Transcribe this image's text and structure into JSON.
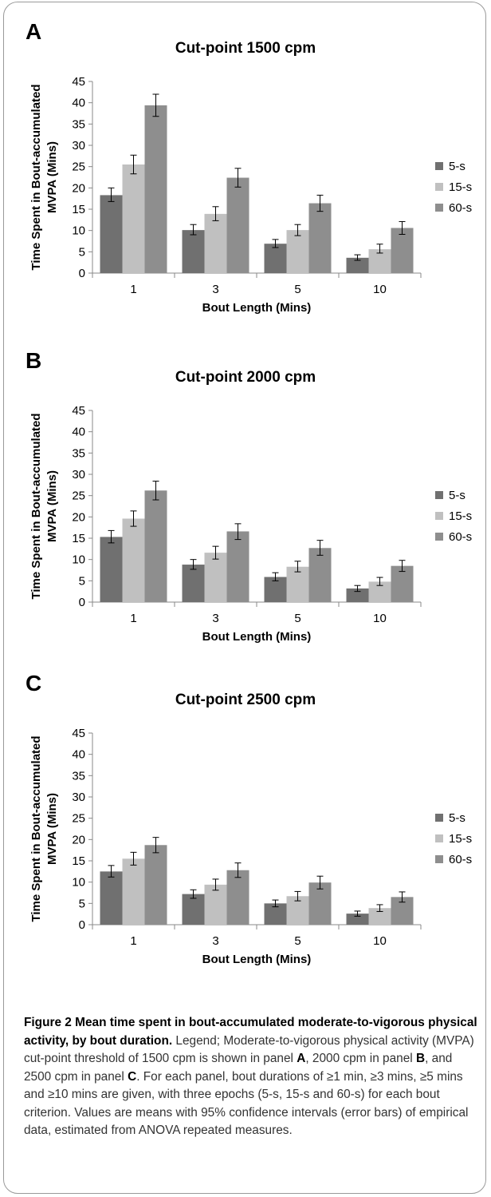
{
  "chart_data": [
    {
      "type": "bar",
      "panel_label": "A",
      "title": "Cut-point 1500 cpm",
      "xlabel": "Bout Length (Mins)",
      "ylabel_lines": [
        "Time Spent in Bout-accumulated",
        "MVPA (Mins)"
      ],
      "categories": [
        "1",
        "3",
        "5",
        "10"
      ],
      "ylim": [
        0,
        45
      ],
      "yticks": [
        0,
        5,
        10,
        15,
        20,
        25,
        30,
        35,
        40,
        45
      ],
      "legend_position": "right",
      "series": [
        {
          "name": "5-s",
          "color": "#707070",
          "values": [
            18.3,
            10.1,
            6.9,
            3.6
          ],
          "err_low": [
            16.8,
            9.0,
            6.0,
            3.0
          ],
          "err_high": [
            20.0,
            11.4,
            7.9,
            4.3
          ]
        },
        {
          "name": "15-s",
          "color": "#c0c0c0",
          "values": [
            25.5,
            13.9,
            10.1,
            5.6
          ],
          "err_low": [
            23.3,
            12.3,
            8.8,
            4.7
          ],
          "err_high": [
            27.7,
            15.6,
            11.4,
            6.8
          ]
        },
        {
          "name": "60-s",
          "color": "#8e8e8e",
          "values": [
            39.4,
            22.4,
            16.4,
            10.6
          ],
          "err_low": [
            36.8,
            20.2,
            14.5,
            9.1
          ],
          "err_high": [
            42.0,
            24.6,
            18.3,
            12.1
          ]
        }
      ]
    },
    {
      "type": "bar",
      "panel_label": "B",
      "title": "Cut-point 2000 cpm",
      "xlabel": "Bout Length (Mins)",
      "ylabel_lines": [
        "Time Spent in Bout-accumulated",
        "MVPA (Mins)"
      ],
      "categories": [
        "1",
        "3",
        "5",
        "10"
      ],
      "ylim": [
        0,
        45
      ],
      "yticks": [
        0,
        5,
        10,
        15,
        20,
        25,
        30,
        35,
        40,
        45
      ],
      "legend_position": "right",
      "series": [
        {
          "name": "5-s",
          "color": "#707070",
          "values": [
            15.3,
            8.8,
            5.9,
            3.2
          ],
          "err_low": [
            13.9,
            7.7,
            5.0,
            2.5
          ],
          "err_high": [
            16.8,
            10.0,
            6.9,
            3.9
          ]
        },
        {
          "name": "15-s",
          "color": "#c0c0c0",
          "values": [
            19.6,
            11.6,
            8.3,
            4.8
          ],
          "err_low": [
            17.8,
            10.1,
            7.1,
            3.9
          ],
          "err_high": [
            21.4,
            13.1,
            9.6,
            5.8
          ]
        },
        {
          "name": "60-s",
          "color": "#8e8e8e",
          "values": [
            26.2,
            16.6,
            12.7,
            8.5
          ],
          "err_low": [
            24.0,
            14.7,
            11.0,
            7.2
          ],
          "err_high": [
            28.4,
            18.4,
            14.5,
            9.8
          ]
        }
      ]
    },
    {
      "type": "bar",
      "panel_label": "C",
      "title": "Cut-point 2500 cpm",
      "xlabel": "Bout Length (Mins)",
      "ylabel_lines": [
        "Time Spent in Bout-accumulated",
        "MVPA (Mins)"
      ],
      "categories": [
        "1",
        "3",
        "5",
        "10"
      ],
      "ylim": [
        0,
        45
      ],
      "yticks": [
        0,
        5,
        10,
        15,
        20,
        25,
        30,
        35,
        40,
        45
      ],
      "legend_position": "right",
      "series": [
        {
          "name": "5-s",
          "color": "#707070",
          "values": [
            12.5,
            7.2,
            5.0,
            2.6
          ],
          "err_low": [
            11.2,
            6.2,
            4.2,
            2.0
          ],
          "err_high": [
            13.9,
            8.2,
            5.8,
            3.2
          ]
        },
        {
          "name": "15-s",
          "color": "#c0c0c0",
          "values": [
            15.5,
            9.4,
            6.7,
            3.9
          ],
          "err_low": [
            14.0,
            8.1,
            5.6,
            3.1
          ],
          "err_high": [
            17.0,
            10.7,
            7.8,
            4.7
          ]
        },
        {
          "name": "60-s",
          "color": "#8e8e8e",
          "values": [
            18.7,
            12.8,
            9.9,
            6.5
          ],
          "err_low": [
            16.9,
            11.1,
            8.4,
            5.3
          ],
          "err_high": [
            20.5,
            14.5,
            11.4,
            7.7
          ]
        }
      ]
    }
  ],
  "caption": {
    "title": "Figure 2 Mean time spent in bout-accumulated moderate-to-vigorous physical activity, by bout duration.",
    "legend_word": "Legend; Moderate-to-vigorous physical activity (MVPA) cut-point threshold of 1500 cpm is shown in panel",
    "panel_a": "A",
    "mid1": ", 2000 cpm in panel",
    "panel_b": "B",
    "mid2": ", and 2500 cpm in panel",
    "panel_c": "C",
    "rest": ". For each panel, bout durations of ≥1 min, ≥3 mins, ≥5 mins and ≥10 mins are given, with three epochs (5-s, 15-s and 60-s) for each bout criterion. Values are means with 95% confidence intervals (error bars) of empirical data, estimated from ANOVA repeated measures."
  }
}
